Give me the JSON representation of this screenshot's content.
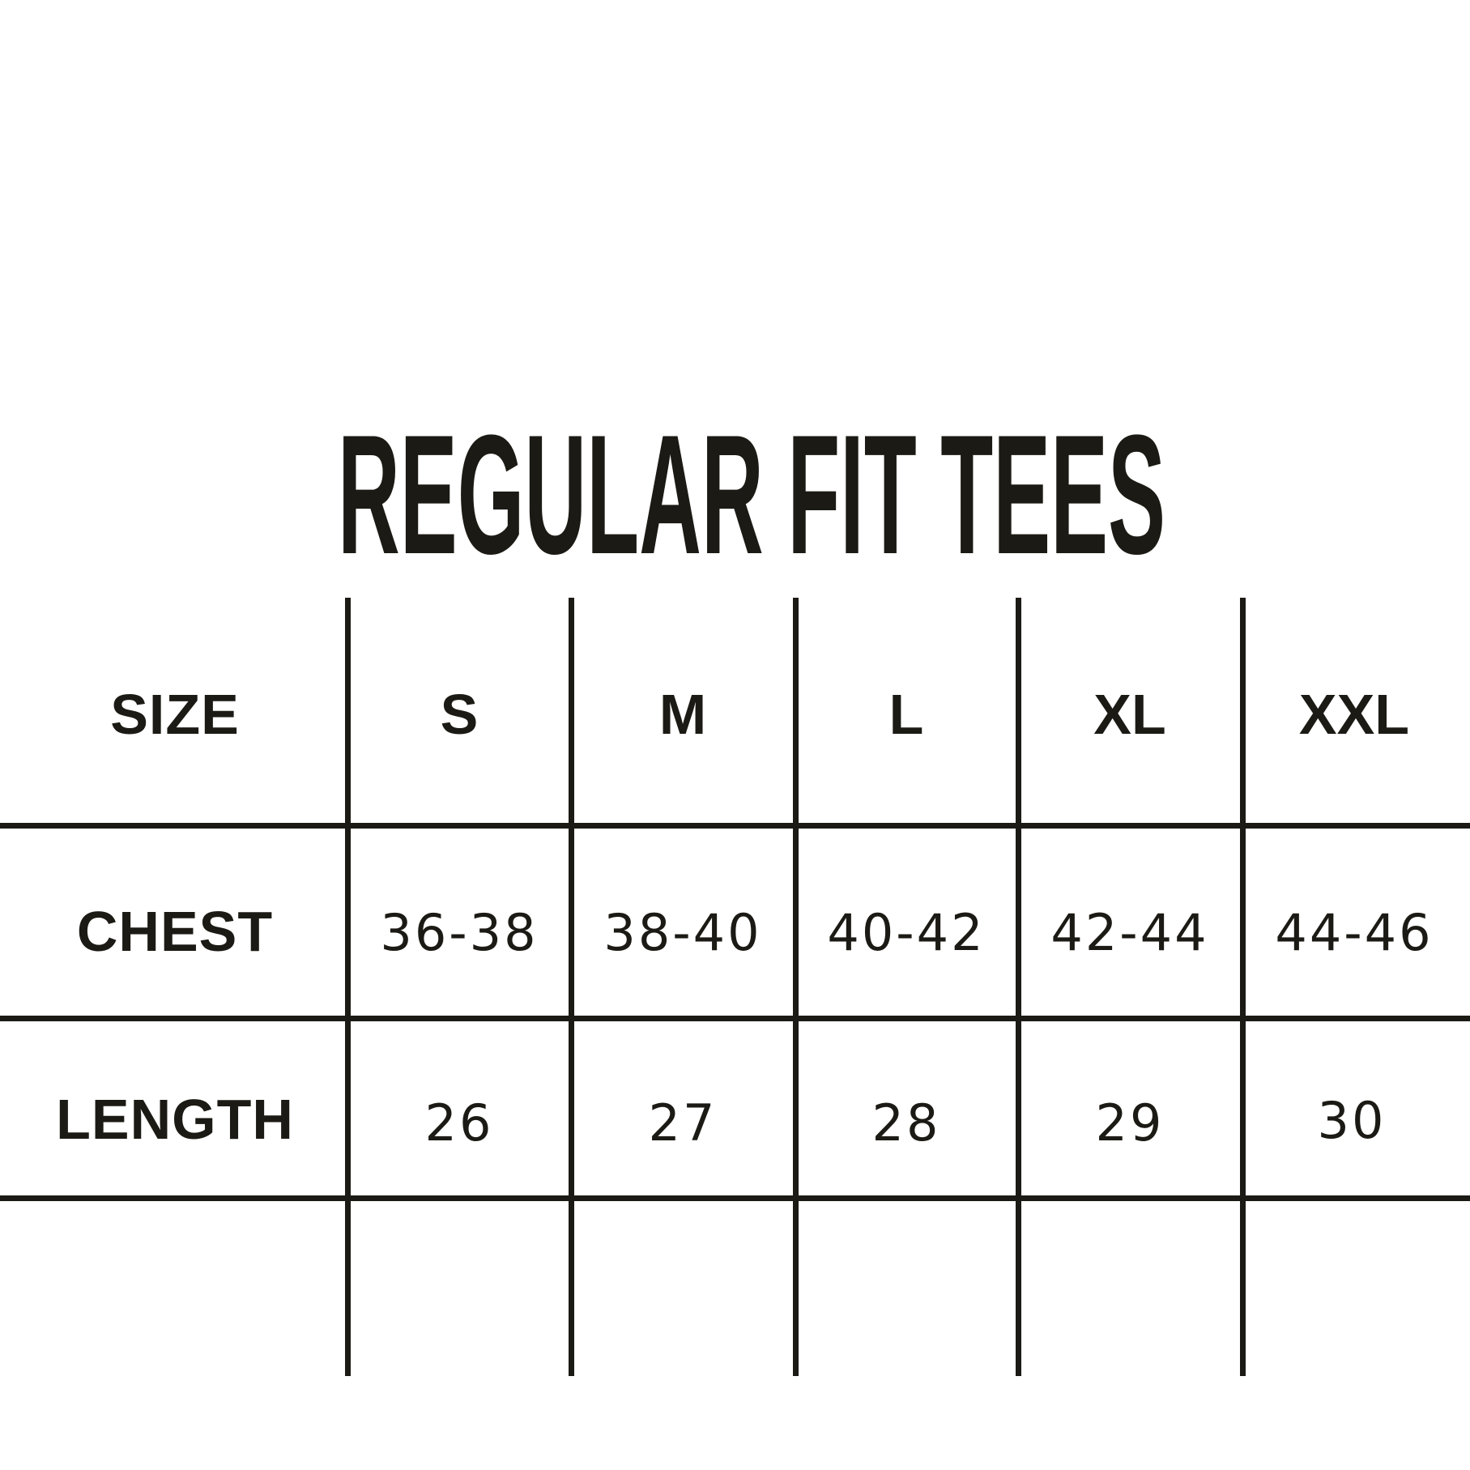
{
  "title": "REGULAR FIT TEES",
  "table": {
    "header": {
      "label": "SIZE",
      "sizes": [
        "S",
        "M",
        "L",
        "XL",
        "XXL"
      ]
    },
    "rows": [
      {
        "label": "CHEST",
        "values": [
          "36-38",
          "38-40",
          "40-42",
          "42-44",
          "44-46"
        ]
      },
      {
        "label": "LENGTH",
        "values": [
          "26",
          "27",
          "28",
          "29",
          "30"
        ]
      }
    ]
  },
  "colors": {
    "ink": "#1c1a14",
    "background": "#ffffff"
  }
}
